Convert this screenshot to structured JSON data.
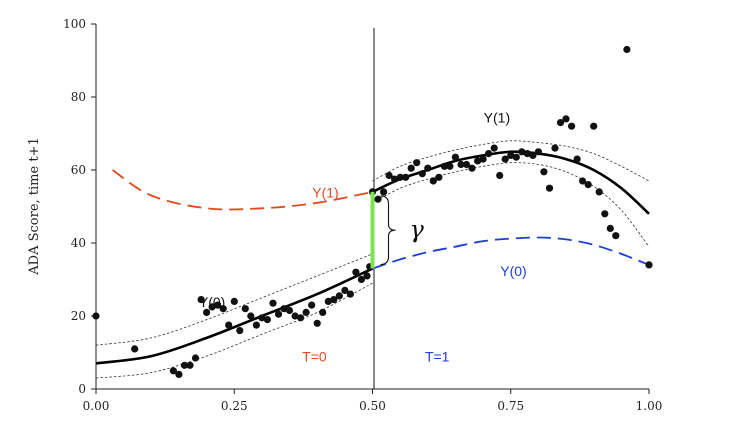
{
  "chart_data": {
    "type": "scatter",
    "title": "",
    "xlabel": "",
    "ylabel": "ADA Score, time t+1",
    "xlim": [
      0,
      1
    ],
    "ylim": [
      0,
      100
    ],
    "x_ticks": [
      "0.00",
      "0.25",
      "0.50",
      "0.75",
      "1.00"
    ],
    "y_ticks": [
      "0",
      "20",
      "40",
      "60",
      "80",
      "100"
    ],
    "x_tick_values": [
      0,
      0.25,
      0.5,
      0.75,
      1.0
    ],
    "y_tick_values": [
      0,
      20,
      40,
      60,
      80,
      100
    ],
    "grid": false,
    "cutoff": 0.5,
    "points": [
      [
        0.0,
        20
      ],
      [
        0.07,
        11
      ],
      [
        0.14,
        5
      ],
      [
        0.15,
        4
      ],
      [
        0.16,
        6.5
      ],
      [
        0.17,
        6.5
      ],
      [
        0.18,
        8.5
      ],
      [
        0.19,
        24.5
      ],
      [
        0.2,
        21
      ],
      [
        0.21,
        22.5
      ],
      [
        0.22,
        23
      ],
      [
        0.23,
        22
      ],
      [
        0.24,
        17.5
      ],
      [
        0.25,
        24
      ],
      [
        0.26,
        16
      ],
      [
        0.27,
        22
      ],
      [
        0.28,
        20
      ],
      [
        0.29,
        17.5
      ],
      [
        0.3,
        19.5
      ],
      [
        0.31,
        19
      ],
      [
        0.32,
        23.5
      ],
      [
        0.33,
        20.5
      ],
      [
        0.34,
        22
      ],
      [
        0.35,
        21.5
      ],
      [
        0.36,
        20
      ],
      [
        0.37,
        19.5
      ],
      [
        0.38,
        21
      ],
      [
        0.39,
        23
      ],
      [
        0.4,
        18
      ],
      [
        0.41,
        21
      ],
      [
        0.42,
        24
      ],
      [
        0.43,
        24.5
      ],
      [
        0.44,
        25.5
      ],
      [
        0.45,
        27
      ],
      [
        0.46,
        26
      ],
      [
        0.47,
        32
      ],
      [
        0.48,
        30
      ],
      [
        0.49,
        31
      ],
      [
        0.495,
        33.5
      ],
      [
        0.5,
        54
      ],
      [
        0.51,
        52
      ],
      [
        0.52,
        54
      ],
      [
        0.53,
        58.5
      ],
      [
        0.54,
        57.5
      ],
      [
        0.55,
        58
      ],
      [
        0.56,
        58
      ],
      [
        0.57,
        60.5
      ],
      [
        0.58,
        62
      ],
      [
        0.59,
        59
      ],
      [
        0.6,
        60.5
      ],
      [
        0.61,
        57
      ],
      [
        0.62,
        58
      ],
      [
        0.63,
        61
      ],
      [
        0.64,
        61
      ],
      [
        0.65,
        63.5
      ],
      [
        0.66,
        61.5
      ],
      [
        0.67,
        61.5
      ],
      [
        0.68,
        60.5
      ],
      [
        0.69,
        62.5
      ],
      [
        0.7,
        63
      ],
      [
        0.71,
        64.5
      ],
      [
        0.72,
        66
      ],
      [
        0.73,
        58.5
      ],
      [
        0.74,
        63
      ],
      [
        0.75,
        64
      ],
      [
        0.76,
        63.5
      ],
      [
        0.77,
        65
      ],
      [
        0.78,
        64.5
      ],
      [
        0.79,
        64
      ],
      [
        0.8,
        65
      ],
      [
        0.81,
        59.5
      ],
      [
        0.82,
        55
      ],
      [
        0.83,
        66
      ],
      [
        0.84,
        73
      ],
      [
        0.85,
        74
      ],
      [
        0.86,
        72
      ],
      [
        0.87,
        63
      ],
      [
        0.88,
        57
      ],
      [
        0.89,
        56
      ],
      [
        0.9,
        72
      ],
      [
        0.91,
        54
      ],
      [
        0.92,
        48
      ],
      [
        0.93,
        44
      ],
      [
        0.94,
        42
      ],
      [
        0.96,
        93
      ],
      [
        1.0,
        34
      ]
    ],
    "fit_lines": [
      {
        "name": "Y(0)",
        "style": "solid",
        "color": "#000000",
        "x": [
          0,
          0.1,
          0.2,
          0.3,
          0.4,
          0.5
        ],
        "y": [
          7,
          9,
          14,
          20,
          26,
          33
        ]
      },
      {
        "name": "Y(1)",
        "style": "solid",
        "color": "#000000",
        "x": [
          0.5,
          0.55,
          0.6,
          0.65,
          0.7,
          0.75,
          0.8,
          0.85,
          0.9,
          0.95,
          1.0
        ],
        "y": [
          54,
          57.5,
          60,
          62.5,
          64,
          65,
          64.5,
          63,
          60,
          55,
          48
        ]
      }
    ],
    "confidence_bands": [
      {
        "x": [
          0,
          0.1,
          0.2,
          0.3,
          0.4,
          0.5
        ],
        "upper": [
          12,
          14,
          19,
          25,
          31,
          37
        ],
        "lower": [
          3,
          4.5,
          9,
          15,
          21,
          29
        ]
      },
      {
        "x": [
          0.5,
          0.55,
          0.6,
          0.65,
          0.7,
          0.75,
          0.8,
          0.85,
          0.9,
          0.95,
          1.0
        ],
        "upper": [
          57,
          61,
          63.5,
          65.5,
          67,
          68,
          67.5,
          66.5,
          64.5,
          61,
          57
        ],
        "lower": [
          51,
          55,
          57.5,
          59.5,
          61,
          62,
          61.5,
          59.5,
          55.5,
          49,
          39
        ]
      }
    ],
    "counterfactual_lines": [
      {
        "name": "Y(1)",
        "style": "dashed",
        "color": "#e04a1f",
        "x": [
          0.03,
          0.1,
          0.2,
          0.3,
          0.4,
          0.5
        ],
        "y": [
          60,
          53,
          49.5,
          49.5,
          51,
          54
        ]
      },
      {
        "name": "Y(0)",
        "style": "dashed",
        "color": "#1c3fd6",
        "x": [
          0.5,
          0.55,
          0.6,
          0.65,
          0.7,
          0.75,
          0.8,
          0.85,
          0.9,
          0.95,
          1.0
        ],
        "y": [
          33,
          35.5,
          37.5,
          39,
          40.5,
          41.2,
          41.5,
          41,
          39.5,
          37,
          34
        ]
      }
    ],
    "effect_segment": {
      "color": "#7fe34f",
      "x": 0.5,
      "y": [
        33,
        54
      ]
    },
    "annotations": {
      "y0_left": "Y(0)",
      "y1_left": "Y(1)",
      "y1_right": "Y(1)",
      "y0_right": "Y(0)",
      "t0": "T=0",
      "t1": "T=1",
      "gamma": "γ"
    },
    "colors": {
      "control": "#e04a1f",
      "treated": "#1c3fd6",
      "effect": "#7fe34f"
    }
  }
}
